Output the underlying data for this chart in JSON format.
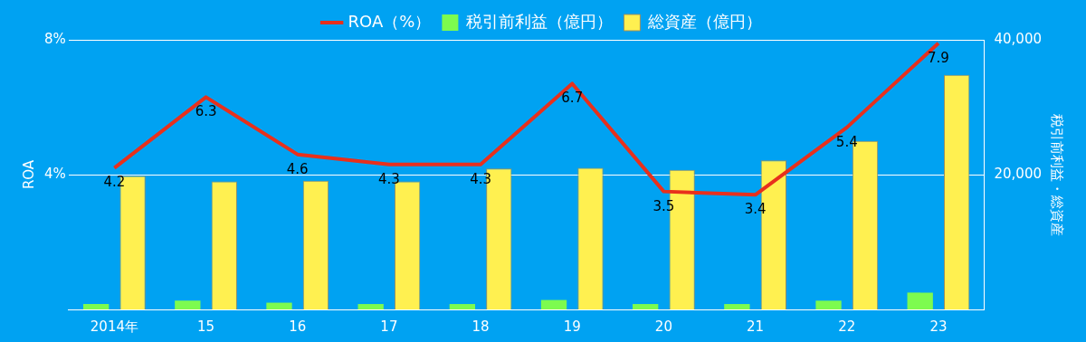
{
  "chart_data": {
    "type": "bar",
    "categories": [
      "2014年",
      "15",
      "16",
      "17",
      "18",
      "19",
      "20",
      "21",
      "22",
      "23"
    ],
    "series": [
      {
        "name": "ROA（%）",
        "type": "line",
        "color": "#e8301c",
        "values": [
          4.2,
          6.3,
          4.6,
          4.3,
          4.3,
          6.7,
          3.5,
          3.4,
          5.4,
          7.9
        ],
        "value_labels": [
          "4.2",
          "6.3",
          "4.6",
          "4.3",
          "4.3",
          "6.7",
          "3.5",
          "3.4",
          "5.4",
          "7.9"
        ]
      },
      {
        "name": "税引前利益（億円）",
        "axis": "y2",
        "color": "#7dfb4f",
        "values": [
          800,
          1300,
          1000,
          800,
          800,
          1400,
          800,
          800,
          1300,
          2500
        ]
      },
      {
        "name": "総資産（億円）",
        "axis": "y2",
        "color": "#fff050",
        "values": [
          19800,
          19000,
          19100,
          19000,
          20900,
          21000,
          20700,
          22100,
          25000,
          34800
        ]
      }
    ],
    "ylabel": "ROA",
    "y2label": "税引前利益・総資産",
    "ylim": [
      0,
      8
    ],
    "yticks": [
      {
        "value": 4,
        "label": "4%"
      },
      {
        "value": 8,
        "label": "8%"
      }
    ],
    "y2lim": [
      0,
      40000
    ],
    "y2ticks": [
      {
        "value": 20000,
        "label": "20,000"
      },
      {
        "value": 40000,
        "label": "40,000"
      }
    ],
    "grid": "y",
    "legend": "top"
  }
}
